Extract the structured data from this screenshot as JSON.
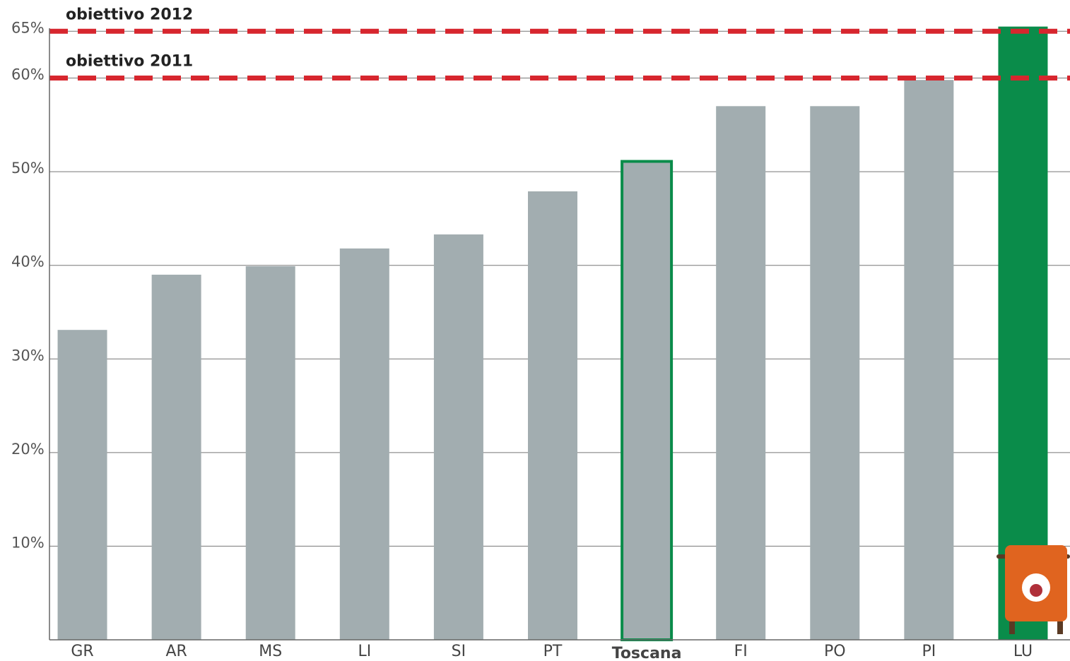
{
  "chart_data": {
    "type": "bar",
    "categories": [
      "GR",
      "AR",
      "MS",
      "LI",
      "SI",
      "PT",
      "Toscana",
      "FI",
      "PO",
      "PI",
      "LU"
    ],
    "values": [
      33.1,
      39.0,
      39.9,
      41.8,
      43.3,
      47.9,
      51.1,
      57.0,
      57.0,
      59.8,
      65.5
    ],
    "bar_colors": [
      "#a2adb0",
      "#a2adb0",
      "#a2adb0",
      "#a2adb0",
      "#a2adb0",
      "#a2adb0",
      "#a2adb0",
      "#a2adb0",
      "#a2adb0",
      "#a2adb0",
      "#0a8c4a"
    ],
    "bar_outlines": [
      null,
      null,
      null,
      null,
      null,
      null,
      "#0a8c4a",
      null,
      null,
      null,
      null
    ],
    "ylim": [
      0,
      66
    ],
    "yticks": [
      {
        "value": 10,
        "label": "10%"
      },
      {
        "value": 20,
        "label": "20%"
      },
      {
        "value": 30,
        "label": "30%"
      },
      {
        "value": 40,
        "label": "40%"
      },
      {
        "value": 50,
        "label": "50%"
      },
      {
        "value": 60,
        "label": "60%"
      },
      {
        "value": 65,
        "label": "65%"
      }
    ],
    "grid": true,
    "reference_lines": [
      {
        "label": "obiettivo 2012",
        "value": 65,
        "color": "#d7262e"
      },
      {
        "label": "obiettivo 2011",
        "value": 60,
        "color": "#d7262e"
      }
    ]
  }
}
